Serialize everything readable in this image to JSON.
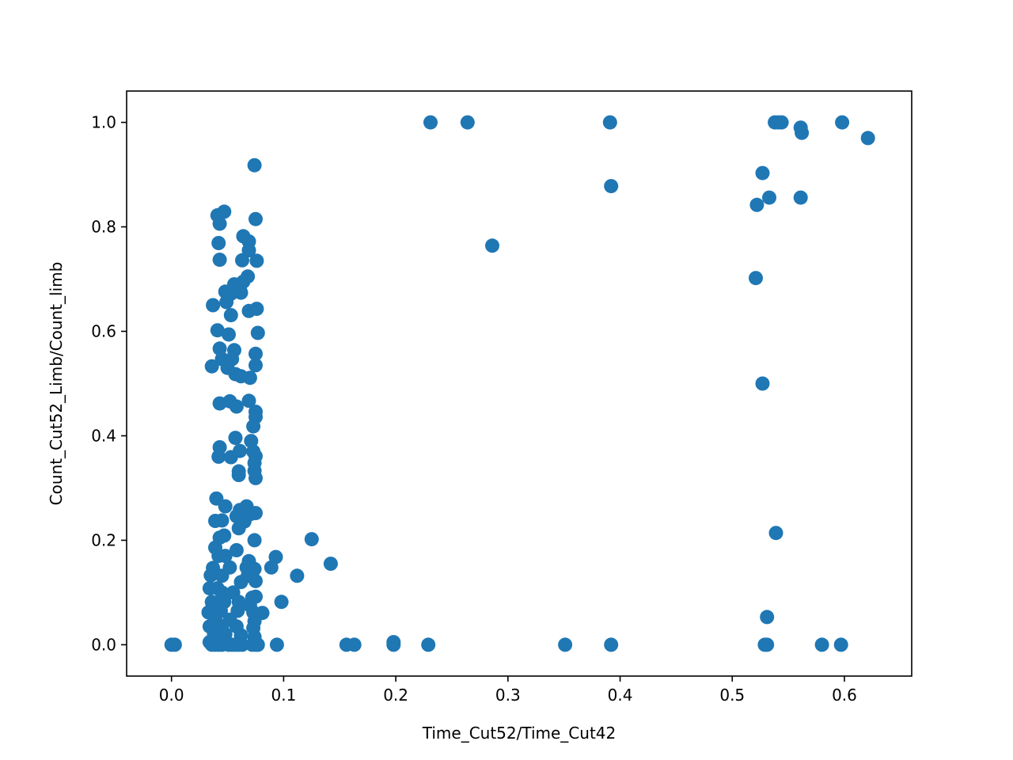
{
  "chart_data": {
    "type": "scatter",
    "title": "",
    "xlabel": "Time_Cut52/Time_Cut42",
    "ylabel": "Count_Cut52_Limb/Count_limb",
    "xlim": [
      -0.04,
      0.66
    ],
    "ylim": [
      -0.06,
      1.06
    ],
    "x_ticks": [
      0.0,
      0.1,
      0.2,
      0.3,
      0.4,
      0.5,
      0.6
    ],
    "y_ticks": [
      0.0,
      0.2,
      0.4,
      0.6,
      0.8,
      1.0
    ],
    "x_tick_labels": [
      "0.0",
      "0.1",
      "0.2",
      "0.3",
      "0.4",
      "0.5",
      "0.6"
    ],
    "y_tick_labels": [
      "0.0",
      "0.2",
      "0.4",
      "0.6",
      "0.8",
      "1.0"
    ],
    "grid": false,
    "legend": "none",
    "marker_color": "#1f77b4",
    "series": [
      {
        "points": [
          [
            0.0,
            0.0
          ],
          [
            0.003,
            0.0
          ],
          [
            0.231,
            1.0
          ],
          [
            0.264,
            1.0
          ],
          [
            0.391,
            1.0
          ],
          [
            0.538,
            1.0
          ],
          [
            0.541,
            1.0
          ],
          [
            0.544,
            1.0
          ],
          [
            0.561,
            0.99
          ],
          [
            0.598,
            1.0
          ],
          [
            0.562,
            0.98
          ],
          [
            0.621,
            0.97
          ],
          [
            0.074,
            0.918
          ],
          [
            0.527,
            0.903
          ],
          [
            0.392,
            0.878
          ],
          [
            0.533,
            0.856
          ],
          [
            0.561,
            0.856
          ],
          [
            0.522,
            0.842
          ],
          [
            0.286,
            0.764
          ],
          [
            0.521,
            0.702
          ],
          [
            0.527,
            0.5
          ],
          [
            0.539,
            0.214
          ],
          [
            0.531,
            0.053
          ],
          [
            0.531,
            0.0
          ],
          [
            0.529,
            0.0
          ],
          [
            0.58,
            0.0
          ],
          [
            0.597,
            0.0
          ],
          [
            0.351,
            0.0
          ],
          [
            0.392,
            0.0
          ],
          [
            0.229,
            0.0
          ],
          [
            0.198,
            0.0
          ],
          [
            0.198,
            0.005
          ],
          [
            0.156,
            0.0
          ],
          [
            0.163,
            0.0
          ],
          [
            0.094,
            0.0
          ],
          [
            0.125,
            0.202
          ],
          [
            0.142,
            0.155
          ],
          [
            0.112,
            0.132
          ],
          [
            0.093,
            0.168
          ],
          [
            0.089,
            0.148
          ],
          [
            0.098,
            0.082
          ],
          [
            0.081,
            0.061
          ],
          [
            0.041,
            0.822
          ],
          [
            0.047,
            0.829
          ],
          [
            0.043,
            0.806
          ],
          [
            0.075,
            0.815
          ],
          [
            0.042,
            0.769
          ],
          [
            0.064,
            0.782
          ],
          [
            0.069,
            0.772
          ],
          [
            0.069,
            0.755
          ],
          [
            0.043,
            0.737
          ],
          [
            0.063,
            0.736
          ],
          [
            0.076,
            0.735
          ],
          [
            0.068,
            0.705
          ],
          [
            0.064,
            0.695
          ],
          [
            0.056,
            0.69
          ],
          [
            0.061,
            0.683
          ],
          [
            0.048,
            0.676
          ],
          [
            0.053,
            0.672
          ],
          [
            0.062,
            0.674
          ],
          [
            0.049,
            0.656
          ],
          [
            0.037,
            0.65
          ],
          [
            0.069,
            0.639
          ],
          [
            0.076,
            0.643
          ],
          [
            0.053,
            0.631
          ],
          [
            0.041,
            0.602
          ],
          [
            0.051,
            0.594
          ],
          [
            0.077,
            0.597
          ],
          [
            0.043,
            0.567
          ],
          [
            0.056,
            0.564
          ],
          [
            0.075,
            0.557
          ],
          [
            0.045,
            0.547
          ],
          [
            0.054,
            0.547
          ],
          [
            0.036,
            0.533
          ],
          [
            0.05,
            0.53
          ],
          [
            0.075,
            0.535
          ],
          [
            0.057,
            0.518
          ],
          [
            0.062,
            0.514
          ],
          [
            0.07,
            0.511
          ],
          [
            0.043,
            0.462
          ],
          [
            0.052,
            0.466
          ],
          [
            0.069,
            0.467
          ],
          [
            0.058,
            0.456
          ],
          [
            0.075,
            0.446
          ],
          [
            0.075,
            0.436
          ],
          [
            0.073,
            0.418
          ],
          [
            0.057,
            0.396
          ],
          [
            0.071,
            0.39
          ],
          [
            0.043,
            0.378
          ],
          [
            0.061,
            0.371
          ],
          [
            0.073,
            0.37
          ],
          [
            0.042,
            0.36
          ],
          [
            0.053,
            0.359
          ],
          [
            0.075,
            0.361
          ],
          [
            0.074,
            0.348
          ],
          [
            0.06,
            0.332
          ],
          [
            0.074,
            0.333
          ],
          [
            0.06,
            0.325
          ],
          [
            0.075,
            0.319
          ],
          [
            0.04,
            0.28
          ],
          [
            0.048,
            0.265
          ],
          [
            0.067,
            0.265
          ],
          [
            0.061,
            0.258
          ],
          [
            0.058,
            0.246
          ],
          [
            0.07,
            0.25
          ],
          [
            0.075,
            0.252
          ],
          [
            0.039,
            0.237
          ],
          [
            0.045,
            0.238
          ],
          [
            0.065,
            0.236
          ],
          [
            0.047,
            0.209
          ],
          [
            0.043,
            0.205
          ],
          [
            0.06,
            0.223
          ],
          [
            0.074,
            0.2
          ],
          [
            0.039,
            0.186
          ],
          [
            0.058,
            0.181
          ],
          [
            0.042,
            0.17
          ],
          [
            0.048,
            0.17
          ],
          [
            0.069,
            0.16
          ],
          [
            0.037,
            0.147
          ],
          [
            0.052,
            0.148
          ],
          [
            0.067,
            0.148
          ],
          [
            0.074,
            0.145
          ],
          [
            0.035,
            0.133
          ],
          [
            0.045,
            0.132
          ],
          [
            0.068,
            0.132
          ],
          [
            0.062,
            0.12
          ],
          [
            0.075,
            0.122
          ],
          [
            0.034,
            0.108
          ],
          [
            0.041,
            0.108
          ],
          [
            0.045,
            0.1
          ],
          [
            0.055,
            0.1
          ],
          [
            0.072,
            0.09
          ],
          [
            0.075,
            0.092
          ],
          [
            0.036,
            0.082
          ],
          [
            0.047,
            0.082
          ],
          [
            0.06,
            0.082
          ],
          [
            0.07,
            0.075
          ],
          [
            0.033,
            0.062
          ],
          [
            0.044,
            0.065
          ],
          [
            0.059,
            0.065
          ],
          [
            0.073,
            0.062
          ],
          [
            0.039,
            0.05
          ],
          [
            0.052,
            0.048
          ],
          [
            0.074,
            0.045
          ],
          [
            0.034,
            0.035
          ],
          [
            0.045,
            0.035
          ],
          [
            0.058,
            0.035
          ],
          [
            0.073,
            0.032
          ],
          [
            0.038,
            0.02
          ],
          [
            0.048,
            0.02
          ],
          [
            0.062,
            0.018
          ],
          [
            0.074,
            0.015
          ],
          [
            0.034,
            0.005
          ],
          [
            0.036,
            0.0
          ],
          [
            0.039,
            0.0
          ],
          [
            0.042,
            0.0
          ],
          [
            0.045,
            0.0
          ],
          [
            0.048,
            0.003
          ],
          [
            0.051,
            0.0
          ],
          [
            0.054,
            0.0
          ],
          [
            0.057,
            0.0
          ],
          [
            0.06,
            0.0
          ],
          [
            0.063,
            0.0
          ],
          [
            0.072,
            0.0
          ],
          [
            0.075,
            0.0
          ],
          [
            0.077,
            0.0
          ]
        ]
      }
    ]
  }
}
